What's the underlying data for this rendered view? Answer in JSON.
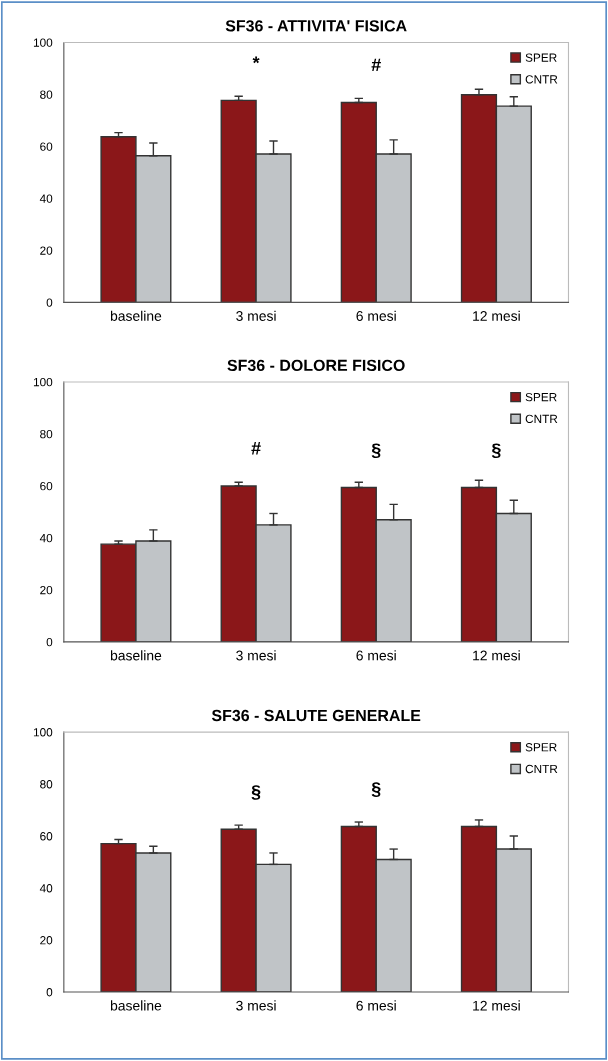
{
  "chart_data": [
    {
      "type": "bar",
      "title": "SF36 - ATTIVITA' FISICA",
      "categories": [
        "baseline",
        "3 mesi",
        "6 mesi",
        "12 mesi"
      ],
      "ylim": [
        0,
        100
      ],
      "yticks": [
        0,
        20,
        40,
        60,
        80,
        100
      ],
      "grid": false,
      "legend": "top right",
      "series": [
        {
          "name": "SPER",
          "color": "#8b1719",
          "values": [
            63.7,
            77.7,
            76.9,
            79.9
          ],
          "errors": [
            [
              63.7,
              65.3
            ],
            [
              77.7,
              79.3
            ],
            [
              76.9,
              78.5
            ],
            [
              79.9,
              82.0
            ]
          ]
        },
        {
          "name": "CNTR",
          "color": "#c0c4c7",
          "values": [
            56.4,
            57.1,
            57.1,
            75.5
          ],
          "errors": [
            [
              56.4,
              61.3
            ],
            [
              57.1,
              62.1
            ],
            [
              57.1,
              62.5
            ],
            [
              75.5,
              79.1
            ]
          ]
        }
      ],
      "annotations": [
        {
          "text": "*",
          "x": "3 mesi",
          "y": 77.7
        },
        {
          "text": "#",
          "x": "6 mesi",
          "y": 76.9
        }
      ]
    },
    {
      "type": "bar",
      "title": "SF36 - DOLORE FISICO",
      "categories": [
        "baseline",
        "3 mesi",
        "6 mesi",
        "12 mesi"
      ],
      "ylim": [
        0,
        100
      ],
      "yticks": [
        0,
        20,
        40,
        60,
        80,
        100
      ],
      "grid": false,
      "legend": "top right",
      "series": [
        {
          "name": "SPER",
          "color": "#8b1719",
          "values": [
            37.6,
            60.0,
            59.4,
            59.4
          ],
          "errors": [
            [
              37.6,
              38.8
            ],
            [
              60.0,
              61.4
            ],
            [
              59.4,
              61.4
            ],
            [
              59.4,
              62.2
            ]
          ]
        },
        {
          "name": "CNTR",
          "color": "#c0c4c7",
          "values": [
            38.8,
            45.0,
            47.0,
            49.4
          ],
          "errors": [
            [
              38.8,
              43.1
            ],
            [
              45.0,
              49.4
            ],
            [
              47.0,
              52.9
            ],
            [
              49.4,
              54.5
            ]
          ]
        }
      ],
      "annotations": [
        {
          "text": "#",
          "x": "3 mesi",
          "y": 60.0
        },
        {
          "text": "§",
          "x": "6 mesi",
          "y": 59.4
        },
        {
          "text": "§",
          "x": "12 mesi",
          "y": 59.4
        }
      ]
    },
    {
      "type": "bar",
      "title": "SF36 - SALUTE GENERALE",
      "categories": [
        "baseline",
        "3 mesi",
        "6 mesi",
        "12 mesi"
      ],
      "ylim": [
        0,
        100
      ],
      "yticks": [
        0,
        20,
        40,
        60,
        80,
        100
      ],
      "grid": false,
      "legend": "top right",
      "series": [
        {
          "name": "SPER",
          "color": "#8b1719",
          "values": [
            57.1,
            62.6,
            63.7,
            63.7
          ],
          "errors": [
            [
              57.1,
              58.7
            ],
            [
              62.6,
              64.2
            ],
            [
              63.7,
              65.4
            ],
            [
              63.7,
              66.2
            ]
          ]
        },
        {
          "name": "CNTR",
          "color": "#c0c4c7",
          "values": [
            53.5,
            49.1,
            51.0,
            55.0
          ],
          "errors": [
            [
              53.5,
              56.1
            ],
            [
              49.1,
              53.5
            ],
            [
              51.0,
              55.0
            ],
            [
              55.0,
              60.0
            ]
          ]
        }
      ],
      "annotations": [
        {
          "text": "§",
          "x": "3 mesi",
          "y": 62.6
        },
        {
          "text": "§",
          "x": "6 mesi",
          "y": 63.7
        }
      ]
    }
  ]
}
